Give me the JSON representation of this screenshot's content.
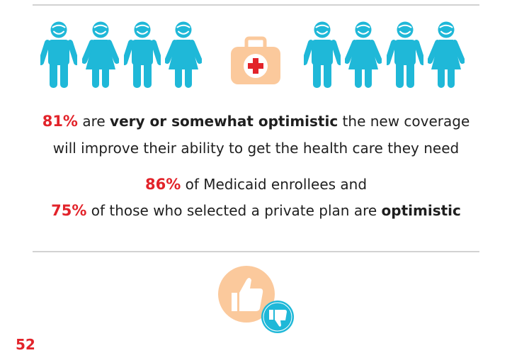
{
  "stat1": {
    "line1": {
      "pct": "81%",
      "text_a": " are ",
      "bold": "very or somewhat optimistic",
      "text_b": " the new coverage"
    },
    "line2": "will improve their ability to get the health care they need"
  },
  "stat2": {
    "line1": {
      "pct": "86%",
      "text": " of Medicaid enrollees and"
    },
    "line2": {
      "pct": "75%",
      "text": " of those who selected a private plan are ",
      "bold": "optimistic"
    }
  },
  "next_stat_partial": "52",
  "colors": {
    "people": "#1fb8d8",
    "kit": "#fbc99c",
    "accent_red": "#e2232a",
    "divider": "#d2d2d2",
    "thumbs_up_bg": "#fbc99c",
    "thumbs_down_bg": "#1fb8d8"
  },
  "icons": {
    "people": [
      "person-male-icon",
      "person-female-icon",
      "person-male-icon",
      "person-female-icon",
      "person-male-icon",
      "person-female-icon",
      "person-male-icon",
      "person-female-icon"
    ],
    "center": "first-aid-kit-icon",
    "thumbs": [
      "thumbs-up-icon",
      "thumbs-down-icon"
    ]
  }
}
